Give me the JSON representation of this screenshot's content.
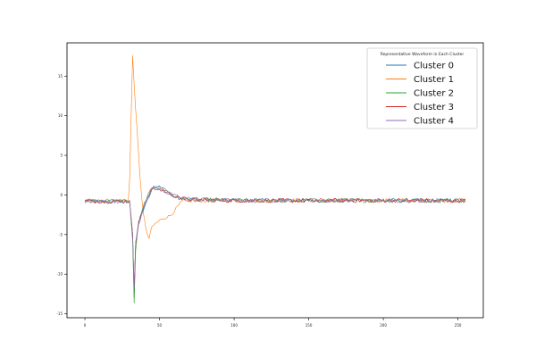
{
  "chart_data": {
    "type": "line",
    "title": "",
    "xlabel": "",
    "ylabel": "",
    "xlim": [
      -12,
      267
    ],
    "ylim": [
      -15.5,
      19.2
    ],
    "xticks": [
      0,
      50,
      100,
      150,
      200,
      250
    ],
    "yticks": [
      -15,
      -10,
      -5,
      0,
      5,
      10,
      15
    ],
    "grid": false,
    "legend": {
      "title": "Representative Waveform in Each Cluster",
      "placement": "top-right"
    },
    "num_samples": 256,
    "series": [
      {
        "name": "Cluster 0",
        "color": "#1f77b4",
        "points": [
          [
            0,
            -0.8
          ],
          [
            30,
            -0.8
          ],
          [
            32,
            -5
          ],
          [
            33,
            -12.8
          ],
          [
            34,
            -6
          ],
          [
            36,
            -3.5
          ],
          [
            40,
            -1.5
          ],
          [
            46,
            1.0
          ],
          [
            50,
            0.8
          ],
          [
            55,
            0.2
          ],
          [
            60,
            -0.2
          ],
          [
            70,
            -0.6
          ],
          [
            100,
            -0.7
          ],
          [
            255,
            -0.7
          ]
        ]
      },
      {
        "name": "Cluster 1",
        "color": "#ff7f0e",
        "points": [
          [
            0,
            -0.7
          ],
          [
            29,
            -0.7
          ],
          [
            30,
            2.0
          ],
          [
            31,
            10.0
          ],
          [
            32,
            17.5
          ],
          [
            33,
            14.0
          ],
          [
            35,
            8.0
          ],
          [
            37,
            2.0
          ],
          [
            39,
            -2.0
          ],
          [
            41,
            -4.5
          ],
          [
            43,
            -5.5
          ],
          [
            45,
            -4.0
          ],
          [
            48,
            -3.5
          ],
          [
            52,
            -3.0
          ],
          [
            55,
            -2.8
          ],
          [
            58,
            -2.5
          ],
          [
            62,
            -1.5
          ],
          [
            66,
            -0.7
          ],
          [
            100,
            -0.7
          ],
          [
            255,
            -0.7
          ]
        ]
      },
      {
        "name": "Cluster 2",
        "color": "#2ca02c",
        "points": [
          [
            0,
            -0.8
          ],
          [
            30,
            -0.8
          ],
          [
            32,
            -6
          ],
          [
            33,
            -13.7
          ],
          [
            34,
            -7
          ],
          [
            36,
            -3.5
          ],
          [
            40,
            -1.0
          ],
          [
            45,
            1.0
          ],
          [
            50,
            1.0
          ],
          [
            55,
            0.5
          ],
          [
            60,
            -0.2
          ],
          [
            70,
            -0.6
          ],
          [
            100,
            -0.7
          ],
          [
            255,
            -0.7
          ]
        ]
      },
      {
        "name": "Cluster 3",
        "color": "#d62728",
        "points": [
          [
            0,
            -0.8
          ],
          [
            30,
            -0.8
          ],
          [
            32,
            -5
          ],
          [
            33,
            -11.5
          ],
          [
            34,
            -6
          ],
          [
            36,
            -3.5
          ],
          [
            40,
            -1.2
          ],
          [
            45,
            0.8
          ],
          [
            50,
            0.7
          ],
          [
            55,
            0.3
          ],
          [
            60,
            -0.2
          ],
          [
            70,
            -0.6
          ],
          [
            100,
            -0.7
          ],
          [
            255,
            -0.7
          ]
        ]
      },
      {
        "name": "Cluster 4",
        "color": "#9467bd",
        "points": [
          [
            0,
            -0.8
          ],
          [
            30,
            -0.8
          ],
          [
            32,
            -5
          ],
          [
            33,
            -12.0
          ],
          [
            34,
            -6
          ],
          [
            36,
            -3.8
          ],
          [
            40,
            -1.2
          ],
          [
            46,
            1.2
          ],
          [
            50,
            1.0
          ],
          [
            55,
            0.5
          ],
          [
            60,
            0.0
          ],
          [
            70,
            -0.5
          ],
          [
            100,
            -0.7
          ],
          [
            255,
            -0.7
          ]
        ]
      }
    ]
  }
}
